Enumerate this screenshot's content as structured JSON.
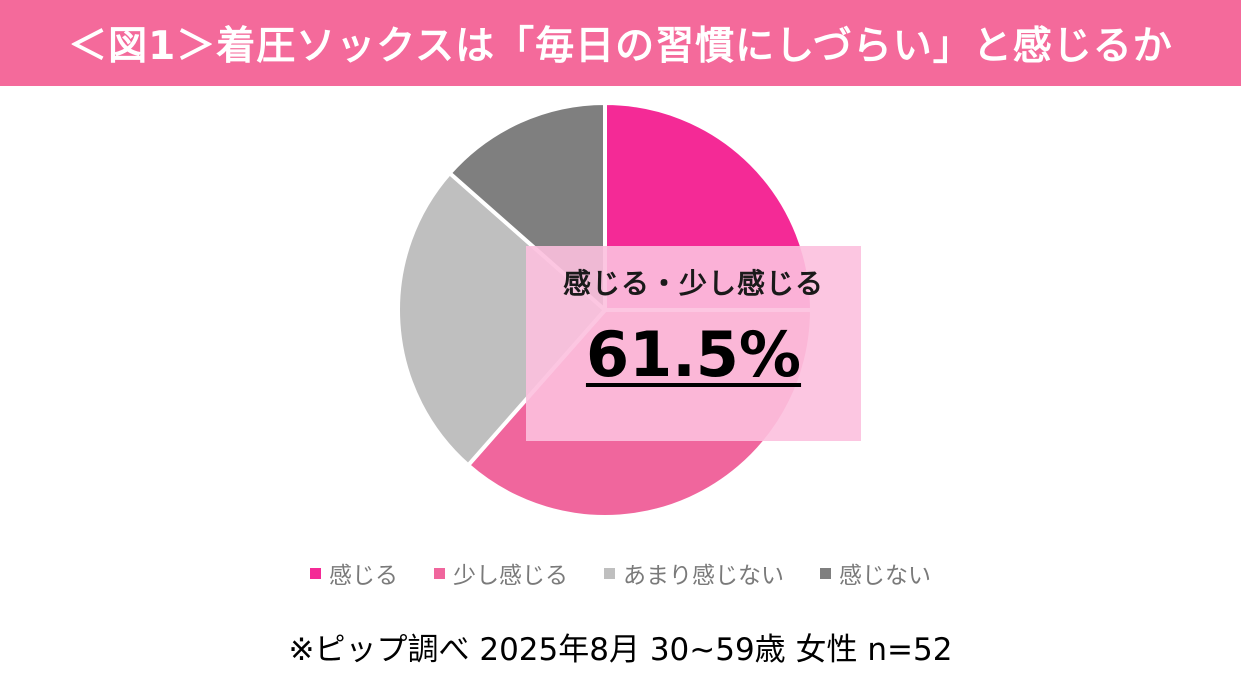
{
  "title": "＜図1＞着圧ソックスは「毎日の習慣にしづらい」と感じるか",
  "colors": {
    "title_bar": "#f46a9b",
    "callout_bg": "#fcc0de"
  },
  "chart_data": {
    "type": "pie",
    "title": "",
    "start_angle_deg": 0,
    "direction": "clockwise",
    "series": [
      {
        "name": "感じる",
        "value": 25.0,
        "color": "#f42a96"
      },
      {
        "name": "少し感じる",
        "value": 36.5,
        "color": "#f0669d"
      },
      {
        "name": "あまり感じない",
        "value": 25.0,
        "color": "#bfbfbf"
      },
      {
        "name": "感じない",
        "value": 13.5,
        "color": "#7f7f7f"
      }
    ],
    "legend": "bottom",
    "annotation": {
      "label": "感じる・少し感じる",
      "value": "61.5%"
    }
  },
  "footnote": "※ピップ調べ 2025年8月 30~59歳 女性 n=52"
}
